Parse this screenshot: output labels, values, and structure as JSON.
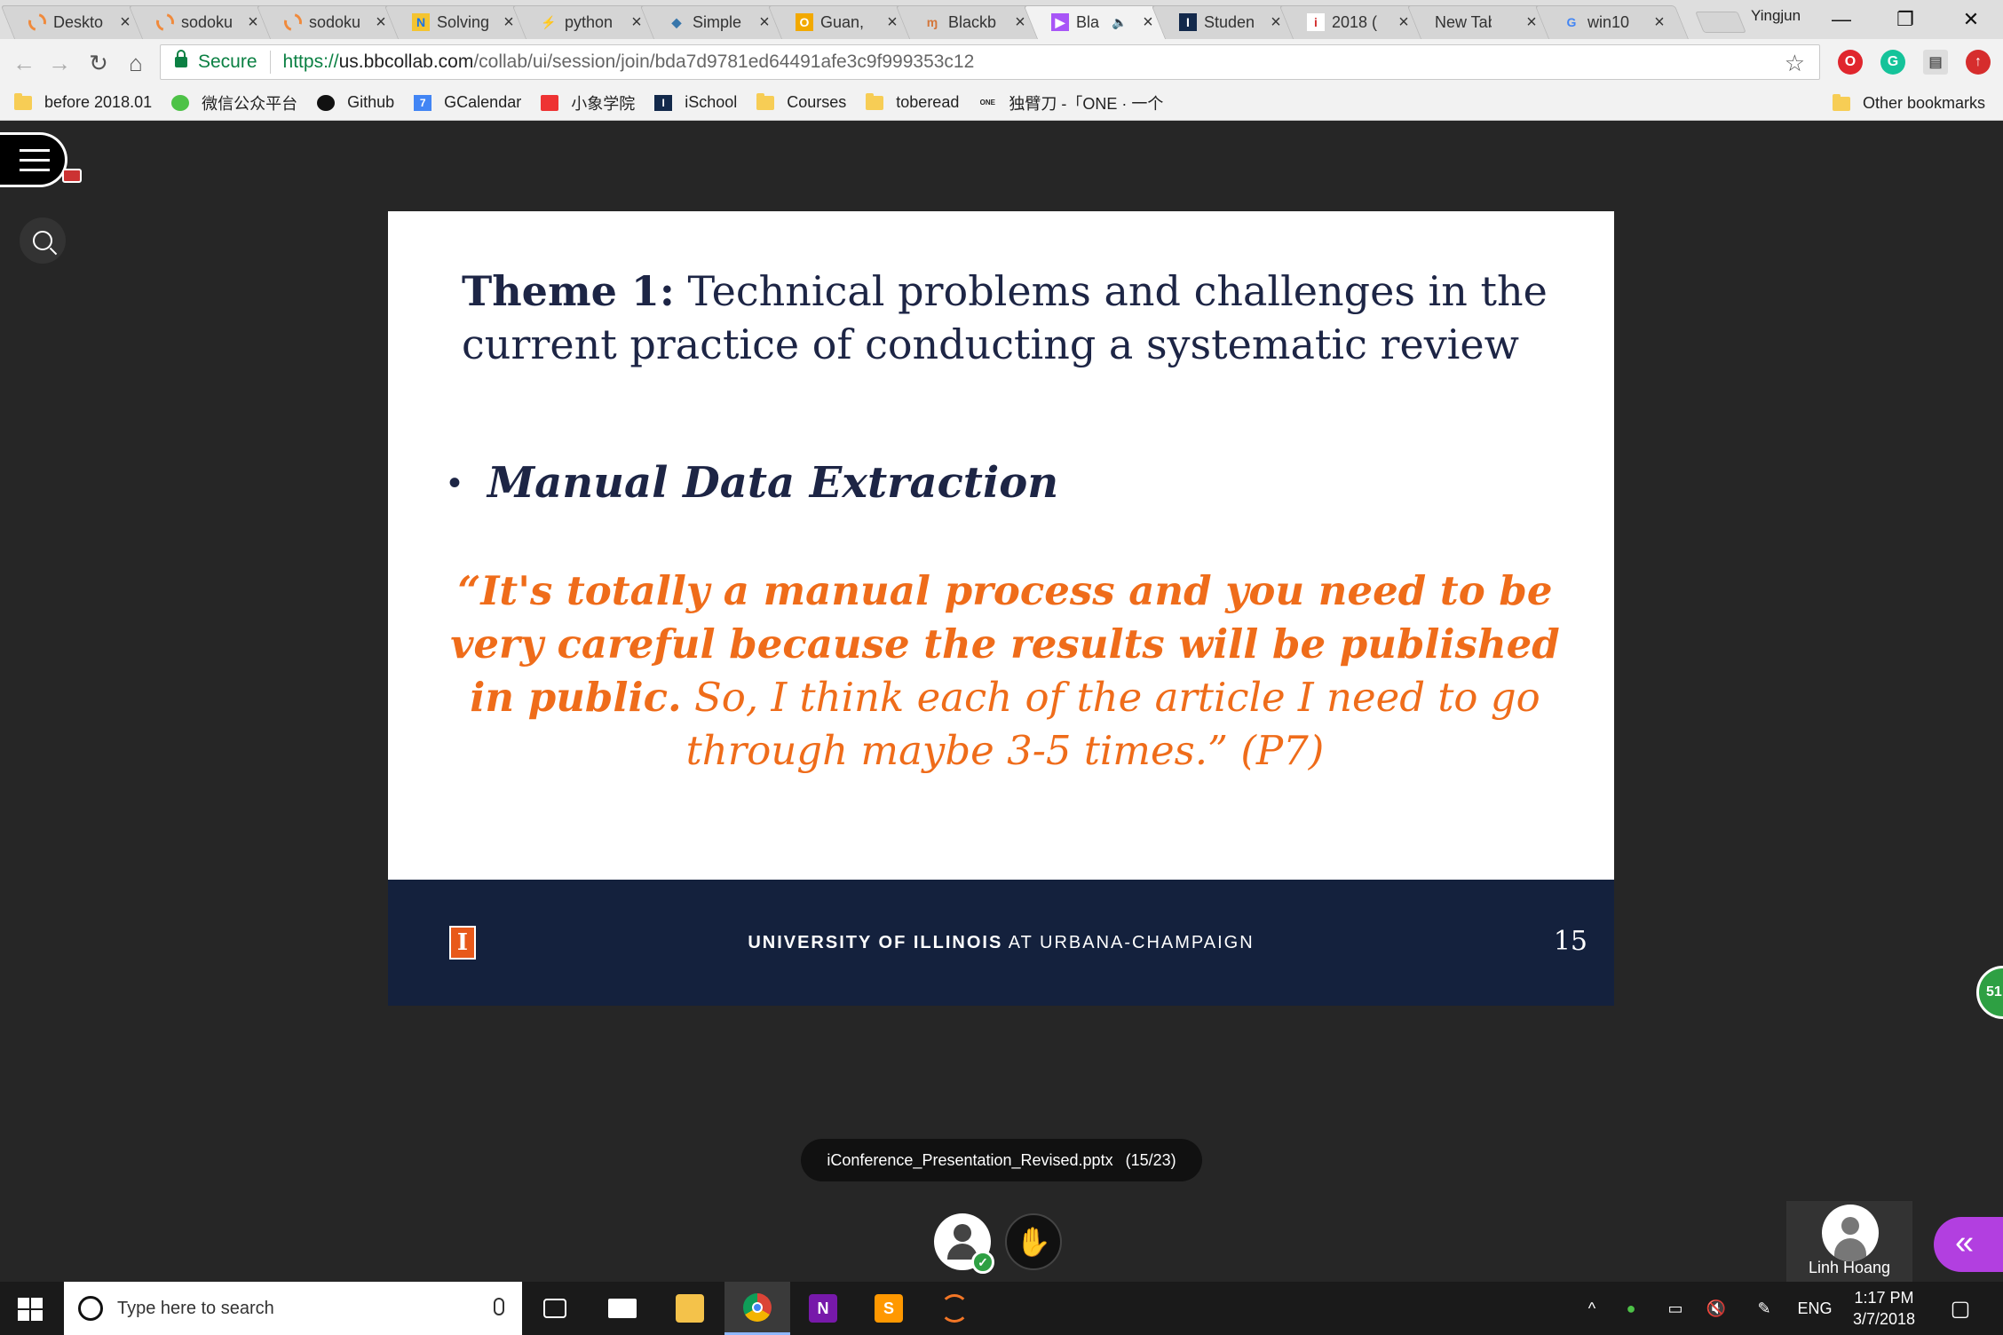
{
  "browser": {
    "tabs": [
      {
        "title": "Deskto",
        "icon": "circle-ring-icon",
        "active": false
      },
      {
        "title": "sodoku",
        "icon": "circle-ring-icon",
        "active": false
      },
      {
        "title": "sodoku",
        "icon": "circle-ring-icon",
        "active": false
      },
      {
        "title": "Solving",
        "icon": "notebook-icon",
        "active": false
      },
      {
        "title": "python",
        "icon": "python-tab-icon",
        "active": false
      },
      {
        "title": "Simple",
        "icon": "python-logo-icon",
        "active": false
      },
      {
        "title": "Guan,",
        "icon": "outlook-icon",
        "active": false
      },
      {
        "title": "Blackb",
        "icon": "blackboard-icon",
        "active": false
      },
      {
        "title": "Bla",
        "icon": "collab-icon",
        "active": true,
        "audio": "🔈"
      },
      {
        "title": "Studen",
        "icon": "illinois-icon",
        "active": false
      },
      {
        "title": "2018 (",
        "icon": "info-icon",
        "active": false
      },
      {
        "title": "New Tab",
        "icon": "",
        "active": false
      },
      {
        "title": "win10",
        "icon": "google-icon",
        "active": false
      }
    ],
    "close_glyph": "×",
    "profile_name": "Yingjun",
    "window_controls": {
      "minimize": "—",
      "restore": "❐",
      "close": "✕"
    },
    "nav": {
      "back": "←",
      "forward": "→",
      "reload": "↻",
      "home": "⌂"
    },
    "address": {
      "secure_label": "Secure",
      "url_proto": "https://",
      "url_host": "us.bbcollab.com",
      "url_path": "/collab/ui/session/join/bda7d9781ed64491afe3c9f999353c12"
    },
    "star_glyph": "☆",
    "bookmarks": [
      {
        "label": "before 2018.01",
        "icon": "folder-icon"
      },
      {
        "label": "微信公众平台",
        "icon": "wechat-icon"
      },
      {
        "label": "Github",
        "icon": "github-icon"
      },
      {
        "label": "GCalendar",
        "icon": "calendar-icon",
        "glyph": "7"
      },
      {
        "label": "小象学院",
        "icon": "xiaoxiang-icon"
      },
      {
        "label": "iSchool",
        "icon": "illinois-icon",
        "glyph": "I"
      },
      {
        "label": "Courses",
        "icon": "folder-icon"
      },
      {
        "label": "toberead",
        "icon": "folder-icon"
      },
      {
        "label": "独臂刀 -「ONE · 一个",
        "icon": "one-icon",
        "glyph": "ONE"
      }
    ],
    "other_bookmarks": "Other bookmarks"
  },
  "slide": {
    "title_bold": "Theme 1:",
    "title_rest": " Technical problems and challenges in the current practice of conducting a systematic review",
    "bullet_dot": "•",
    "bullet": "Manual Data Extraction",
    "quote_bold": "“It's totally a manual process and you need to be very careful because the results will be published in public.",
    "quote_rest": " So, I think each of the article I need to go through maybe 3-5 times.” (P7)",
    "footer_logo": "I",
    "footer_bold": "UNIVERSITY OF ILLINOIS",
    "footer_rest": " AT URBANA-CHAMPAIGN",
    "page_number": "15"
  },
  "presentation": {
    "filename": "iConference_Presentation_Revised.pptx",
    "position": "(15/23)"
  },
  "session": {
    "check_glyph": "✓",
    "hand_glyph": "✋",
    "participant_name": "Linh Hoang",
    "collapse_glyph": "«",
    "badge_text": "51"
  },
  "taskbar": {
    "search_placeholder": "Type here to search",
    "language": "ENG",
    "time": "1:17 PM",
    "date": "3/7/2018",
    "apps": [
      {
        "name": "task-view-icon",
        "color": "#1a1a1a"
      },
      {
        "name": "mail-icon",
        "color": "#1a1a1a"
      },
      {
        "name": "file-explorer-icon",
        "color": "#f4c24a"
      },
      {
        "name": "chrome-icon",
        "color": "#db4437"
      },
      {
        "name": "onenote-icon",
        "color": "#7719aa",
        "glyph": "N"
      },
      {
        "name": "sublime-text-icon",
        "color": "#ff9800",
        "glyph": "S"
      },
      {
        "name": "jupyter-icon",
        "color": "#1a1a1a"
      }
    ],
    "tray": {
      "chevron": "^",
      "wechat": "●",
      "battery": "▭",
      "volume": "🔇",
      "pen": "✎",
      "notifications": "▢"
    }
  }
}
